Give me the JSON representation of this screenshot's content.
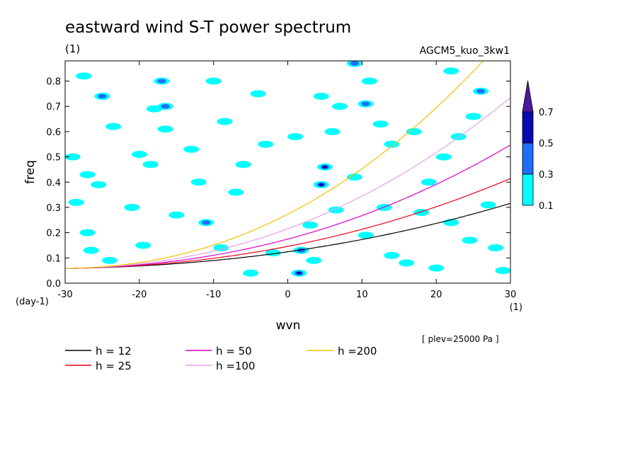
{
  "header": {
    "title": "eastward wind S-T power spectrum",
    "units_left": "(1)",
    "run_name": "AGCM5_kuo_3kw1"
  },
  "footer": {
    "plev": "[ plev=25000 Pa ]"
  },
  "chart_data": {
    "type": "contour",
    "xlabel": "wvn",
    "ylabel": "freq",
    "x_units": "(1)",
    "y_units": "(day-1)",
    "xlim": [
      -30,
      30
    ],
    "ylim": [
      0,
      0.88
    ],
    "x_ticks": [
      -30,
      -20,
      -10,
      0,
      10,
      20,
      30
    ],
    "x_tick_labels": [
      "-30",
      "-20",
      "-10",
      "0",
      "10",
      "20",
      "30"
    ],
    "y_ticks": [
      0,
      0.1,
      0.2,
      0.3,
      0.4,
      0.5,
      0.6,
      0.7,
      0.8
    ],
    "y_tick_labels": [
      "0.0",
      "0.1",
      "0.2",
      "0.3",
      "0.4",
      "0.5",
      "0.6",
      "0.7",
      "0.8"
    ],
    "colorbar": {
      "levels": [
        0.1,
        0.3,
        0.5,
        0.7
      ],
      "labels": [
        "0.1",
        "0.3",
        "0.5",
        "0.7"
      ],
      "colors": [
        "#00ffff",
        "#1e6ef5",
        "#0a0ab0",
        "#4b1a9e"
      ],
      "extend": "max"
    },
    "series": [
      {
        "name": "h = 12",
        "h": 12,
        "color": "#000000"
      },
      {
        "name": "h = 25",
        "h": 25,
        "color": "#e8001c"
      },
      {
        "name": "h = 50",
        "h": 50,
        "color": "#d800c8"
      },
      {
        "name": "h =100",
        "h": 100,
        "color": "#e6a0e6"
      },
      {
        "name": "h =200",
        "h": 200,
        "color": "#f0c000"
      }
    ],
    "blobs": [
      {
        "x": -27.5,
        "y": 0.82,
        "l": 1
      },
      {
        "x": -25,
        "y": 0.74,
        "l": 2
      },
      {
        "x": -23.5,
        "y": 0.62,
        "l": 1
      },
      {
        "x": -29,
        "y": 0.5,
        "l": 1
      },
      {
        "x": -27,
        "y": 0.43,
        "l": 1
      },
      {
        "x": -25.5,
        "y": 0.39,
        "l": 1
      },
      {
        "x": -28.5,
        "y": 0.32,
        "l": 1
      },
      {
        "x": -27,
        "y": 0.2,
        "l": 1
      },
      {
        "x": -26.5,
        "y": 0.13,
        "l": 1
      },
      {
        "x": -24,
        "y": 0.09,
        "l": 1
      },
      {
        "x": -21,
        "y": 0.3,
        "l": 1
      },
      {
        "x": -19.5,
        "y": 0.15,
        "l": 1
      },
      {
        "x": -20,
        "y": 0.51,
        "l": 1
      },
      {
        "x": -18.5,
        "y": 0.47,
        "l": 1
      },
      {
        "x": -17,
        "y": 0.8,
        "l": 2
      },
      {
        "x": -18,
        "y": 0.69,
        "l": 1
      },
      {
        "x": -16.5,
        "y": 0.61,
        "l": 1
      },
      {
        "x": -16.5,
        "y": 0.7,
        "l": 2
      },
      {
        "x": -15,
        "y": 0.27,
        "l": 1
      },
      {
        "x": -13,
        "y": 0.53,
        "l": 1
      },
      {
        "x": -11,
        "y": 0.24,
        "l": 2
      },
      {
        "x": -12,
        "y": 0.4,
        "l": 1
      },
      {
        "x": -10,
        "y": 0.8,
        "l": 1
      },
      {
        "x": -8.5,
        "y": 0.64,
        "l": 1
      },
      {
        "x": -9,
        "y": 0.14,
        "l": 1
      },
      {
        "x": -7,
        "y": 0.36,
        "l": 1
      },
      {
        "x": -6,
        "y": 0.47,
        "l": 1
      },
      {
        "x": -5,
        "y": 0.04,
        "l": 1
      },
      {
        "x": -2,
        "y": 0.12,
        "l": 1
      },
      {
        "x": -4,
        "y": 0.75,
        "l": 1
      },
      {
        "x": -3,
        "y": 0.55,
        "l": 1
      },
      {
        "x": 1,
        "y": 0.58,
        "l": 1
      },
      {
        "x": 1.5,
        "y": 0.04,
        "l": 3
      },
      {
        "x": 1.8,
        "y": 0.13,
        "l": 2
      },
      {
        "x": 3,
        "y": 0.23,
        "l": 1
      },
      {
        "x": 3.5,
        "y": 0.09,
        "l": 1
      },
      {
        "x": 4.5,
        "y": 0.39,
        "l": 3
      },
      {
        "x": 5,
        "y": 0.46,
        "l": 3
      },
      {
        "x": 4.5,
        "y": 0.74,
        "l": 1
      },
      {
        "x": 6,
        "y": 0.6,
        "l": 1
      },
      {
        "x": 7,
        "y": 0.7,
        "l": 1
      },
      {
        "x": 9,
        "y": 0.87,
        "l": 2
      },
      {
        "x": 9,
        "y": 0.42,
        "l": 1
      },
      {
        "x": 10.5,
        "y": 0.71,
        "l": 2
      },
      {
        "x": 11,
        "y": 0.8,
        "l": 1
      },
      {
        "x": 12.5,
        "y": 0.63,
        "l": 1
      },
      {
        "x": 14,
        "y": 0.55,
        "l": 1
      },
      {
        "x": 13,
        "y": 0.3,
        "l": 1
      },
      {
        "x": 10.5,
        "y": 0.19,
        "l": 1
      },
      {
        "x": 14,
        "y": 0.11,
        "l": 1
      },
      {
        "x": 16,
        "y": 0.08,
        "l": 1
      },
      {
        "x": 17,
        "y": 0.6,
        "l": 1
      },
      {
        "x": 19,
        "y": 0.4,
        "l": 1
      },
      {
        "x": 21,
        "y": 0.5,
        "l": 1
      },
      {
        "x": 22,
        "y": 0.84,
        "l": 1
      },
      {
        "x": 23,
        "y": 0.58,
        "l": 1
      },
      {
        "x": 25,
        "y": 0.66,
        "l": 1
      },
      {
        "x": 26,
        "y": 0.76,
        "l": 2
      },
      {
        "x": 27,
        "y": 0.31,
        "l": 1
      },
      {
        "x": 24.5,
        "y": 0.17,
        "l": 1
      },
      {
        "x": 28,
        "y": 0.14,
        "l": 1
      },
      {
        "x": 22,
        "y": 0.24,
        "l": 1
      },
      {
        "x": 29,
        "y": 0.05,
        "l": 1
      },
      {
        "x": 20,
        "y": 0.06,
        "l": 1
      },
      {
        "x": 18,
        "y": 0.28,
        "l": 1
      },
      {
        "x": 6.5,
        "y": 0.29,
        "l": 1
      }
    ]
  }
}
